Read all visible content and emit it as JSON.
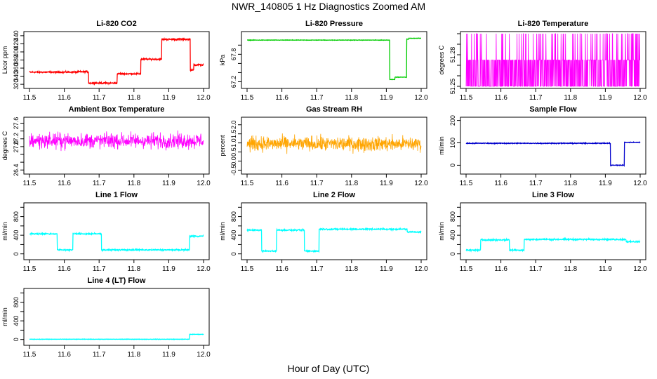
{
  "page": {
    "title": "NWR_140805  1 Hz Diagnostics Zoomed AM",
    "x_axis_title": "Hour of Day (UTC)"
  },
  "chart_data": [
    {
      "type": "line",
      "title": "Li-820 CO2",
      "ylabel": "Licor ppm",
      "color": "#ff0000",
      "xlim": [
        11.5,
        12.0
      ],
      "ylim": [
        315,
        445
      ],
      "xticks": [
        11.5,
        11.6,
        11.7,
        11.8,
        11.9,
        12.0
      ],
      "yticks": [
        320,
        340,
        360,
        380,
        400,
        420,
        440
      ],
      "noise": 1.5,
      "segments": [
        [
          11.5,
          11.64,
          350
        ],
        [
          11.64,
          11.67,
          351
        ],
        [
          11.67,
          11.752,
          323
        ],
        [
          11.752,
          11.82,
          346
        ],
        [
          11.82,
          11.88,
          382
        ],
        [
          11.88,
          11.962,
          431
        ],
        [
          11.962,
          11.972,
          355
        ],
        [
          11.972,
          12.0,
          368
        ]
      ]
    },
    {
      "type": "line",
      "title": "Li-820 Pressure",
      "ylabel": "kPa",
      "color": "#00cc00",
      "xlim": [
        11.5,
        12.0
      ],
      "ylim": [
        67.1,
        68.25
      ],
      "xticks": [
        11.5,
        11.6,
        11.7,
        11.8,
        11.9,
        12.0
      ],
      "yticks": [
        67.2,
        67.4,
        67.6,
        67.8,
        68.0
      ],
      "ytick_labels": [
        67.2,
        67.8
      ],
      "noise": 0.004,
      "segments": [
        [
          11.5,
          11.91,
          68.11
        ],
        [
          11.91,
          11.925,
          67.25
        ],
        [
          11.925,
          11.958,
          67.3
        ],
        [
          11.958,
          11.965,
          68.13
        ],
        [
          11.965,
          12.0,
          68.15
        ]
      ]
    },
    {
      "type": "line",
      "title": "Li-820 Temperature",
      "ylabel": "degrees C",
      "color": "#ff00ff",
      "xlim": [
        11.5,
        12.0
      ],
      "ylim": [
        51.25,
        51.3
      ],
      "xticks": [
        11.5,
        11.6,
        11.7,
        11.8,
        11.9,
        12.0
      ],
      "yticks": [
        51.25,
        51.26,
        51.27,
        51.28,
        51.29,
        51.3
      ],
      "ytick_labels": [
        51.25,
        51.28
      ],
      "quantized": [
        51.25,
        51.275,
        51.3
      ]
    },
    {
      "type": "line",
      "title": "Ambient Box Temperature",
      "ylabel": "degrees C",
      "color": "#ff00ff",
      "xlim": [
        11.5,
        12.0
      ],
      "ylim": [
        26.35,
        27.7
      ],
      "xticks": [
        11.5,
        11.6,
        11.7,
        11.8,
        11.9,
        12.0
      ],
      "yticks": [
        26.4,
        26.6,
        26.8,
        27.0,
        27.2,
        27.4,
        27.6
      ],
      "ytick_labels": [
        26.4,
        27.0,
        27.2,
        27.6
      ],
      "noise": 0.17,
      "center": 27.15
    },
    {
      "type": "line",
      "title": "Gas Stream RH",
      "ylabel": "percent",
      "color": "#ffa500",
      "xlim": [
        11.5,
        12.0
      ],
      "ylim": [
        -0.6,
        2.3
      ],
      "xticks": [
        11.5,
        11.6,
        11.7,
        11.8,
        11.9,
        12.0
      ],
      "yticks": [
        -0.5,
        0.0,
        0.5,
        1.0,
        1.5,
        2.0
      ],
      "noise": 0.35,
      "center": 0.95
    },
    {
      "type": "line",
      "title": "Sample Flow",
      "ylabel": "ml/min",
      "color": "#0000cc",
      "xlim": [
        11.5,
        12.0
      ],
      "ylim": [
        -30,
        205
      ],
      "xticks": [
        11.5,
        11.6,
        11.7,
        11.8,
        11.9,
        12.0
      ],
      "yticks": [
        0,
        100,
        200
      ],
      "noise": 1.5,
      "segments": [
        [
          11.5,
          11.915,
          98
        ],
        [
          11.915,
          11.955,
          0
        ],
        [
          11.955,
          12.0,
          102
        ]
      ]
    },
    {
      "type": "line",
      "title": "Line 1 Flow",
      "ylabel": "ml/min",
      "color": "#00ffff",
      "xlim": [
        11.5,
        12.0
      ],
      "ylim": [
        -80,
        1050
      ],
      "xticks": [
        11.5,
        11.6,
        11.7,
        11.8,
        11.9,
        12.0
      ],
      "yticks": [
        0,
        200,
        400,
        600,
        800,
        1000
      ],
      "ytick_labels": [
        0,
        400,
        800
      ],
      "noise": 12,
      "segments": [
        [
          11.5,
          11.58,
          430
        ],
        [
          11.58,
          11.625,
          85
        ],
        [
          11.625,
          11.707,
          430
        ],
        [
          11.707,
          11.96,
          85
        ],
        [
          11.96,
          12.0,
          380
        ]
      ]
    },
    {
      "type": "line",
      "title": "Line 2 Flow",
      "ylabel": "ml/min",
      "color": "#00ffff",
      "xlim": [
        11.5,
        12.0
      ],
      "ylim": [
        -80,
        1050
      ],
      "xticks": [
        11.5,
        11.6,
        11.7,
        11.8,
        11.9,
        12.0
      ],
      "yticks": [
        0,
        200,
        400,
        600,
        800,
        1000
      ],
      "ytick_labels": [
        0,
        400,
        800
      ],
      "noise": 12,
      "segments": [
        [
          11.5,
          11.542,
          510
        ],
        [
          11.542,
          11.585,
          60
        ],
        [
          11.585,
          11.665,
          510
        ],
        [
          11.665,
          11.707,
          60
        ],
        [
          11.707,
          11.96,
          530
        ],
        [
          11.96,
          12.0,
          470
        ]
      ]
    },
    {
      "type": "line",
      "title": "Line 3 Flow",
      "ylabel": "ml/min",
      "color": "#00ffff",
      "xlim": [
        11.5,
        12.0
      ],
      "ylim": [
        -80,
        1050
      ],
      "xticks": [
        11.5,
        11.6,
        11.7,
        11.8,
        11.9,
        12.0
      ],
      "yticks": [
        0,
        200,
        400,
        600,
        800,
        1000
      ],
      "ytick_labels": [
        0,
        400,
        800
      ],
      "noise": 12,
      "segments": [
        [
          11.5,
          11.542,
          80
        ],
        [
          11.542,
          11.625,
          300
        ],
        [
          11.625,
          11.667,
          80
        ],
        [
          11.667,
          11.96,
          310
        ],
        [
          11.96,
          12.0,
          260
        ]
      ]
    },
    {
      "type": "line",
      "title": "Line 4 (LT) Flow",
      "ylabel": "ml/min",
      "color": "#00ffff",
      "xlim": [
        11.5,
        12.0
      ],
      "ylim": [
        -80,
        1050
      ],
      "xticks": [
        11.5,
        11.6,
        11.7,
        11.8,
        11.9,
        12.0
      ],
      "yticks": [
        0,
        200,
        400,
        600,
        800,
        1000
      ],
      "ytick_labels": [
        0,
        400,
        800
      ],
      "noise": 4,
      "segments": [
        [
          11.5,
          11.96,
          5
        ],
        [
          11.96,
          12.0,
          110
        ]
      ]
    }
  ]
}
